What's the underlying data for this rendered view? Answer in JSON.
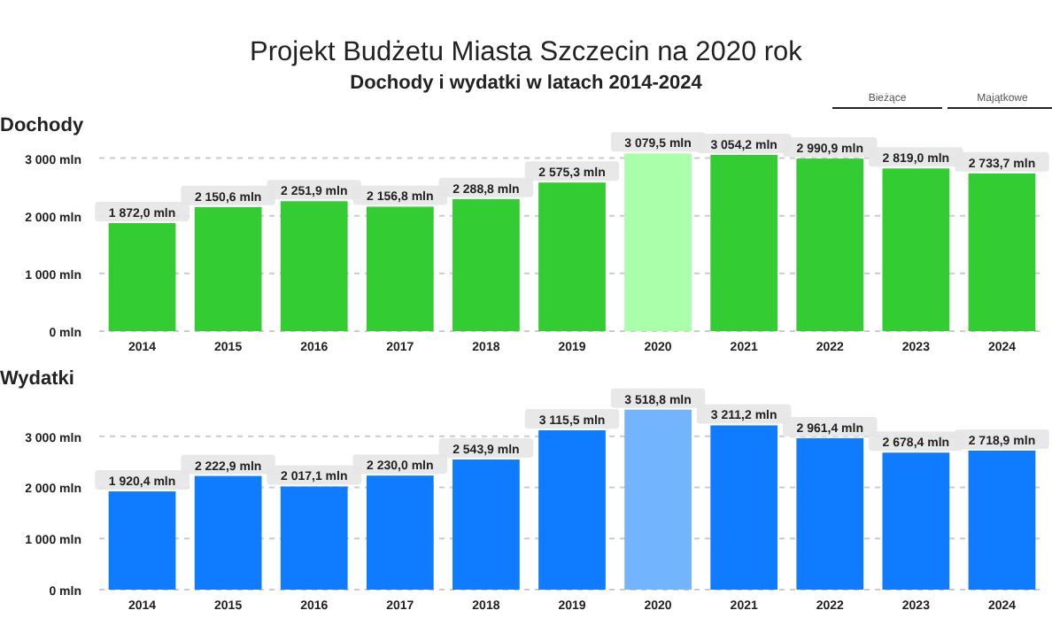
{
  "chart_data": [
    {
      "type": "bar",
      "title": "Projekt Budżetu Miasta Szczecin na 2020 rok",
      "subtitle": "Dochody i wydatki w latach 2014-2024",
      "annotations": [
        "Dochody",
        "Bieżące",
        "Majątkowe"
      ],
      "categories": [
        "2014",
        "2015",
        "2016",
        "2017",
        "2018",
        "2019",
        "2020",
        "2021",
        "2022",
        "2023",
        "2024"
      ],
      "values": [
        1872.0,
        2150.6,
        2251.9,
        2156.8,
        2288.8,
        2575.3,
        3079.5,
        3054.2,
        2990.9,
        2819.0,
        2733.7
      ],
      "colors": [
        "#33cc33",
        "#33cc33",
        "#33cc33",
        "#33cc33",
        "#33cc33",
        "#33cc33",
        "#aaffaa",
        "#33cc33",
        "#33cc33",
        "#33cc33",
        "#33cc33"
      ],
      "value_labels": [
        "1 872,0 mln",
        "2 150,6 mln",
        "2 251,9 mln",
        "2 156,8 mln",
        "2 288,8 mln",
        "2 575,3 mln",
        "3 079,5 mln",
        "3 054,2 mln",
        "2 990,9 mln",
        "2 819,0 mln",
        "2 733,7 mln"
      ],
      "ylim": [
        0,
        3100
      ],
      "yticks": [
        {
          "value": 0,
          "label": "0 mln"
        },
        {
          "value": 1000,
          "label": "1 000 mln"
        },
        {
          "value": 2000,
          "label": "2 000 mln"
        },
        {
          "value": 3000,
          "label": "3 000 mln"
        }
      ],
      "grid": "y"
    },
    {
      "type": "bar",
      "title": "Wydatki",
      "categories": [
        "2014",
        "2015",
        "2016",
        "2017",
        "2018",
        "2019",
        "2020",
        "2021",
        "2022",
        "2023",
        "2024"
      ],
      "values": [
        1920.4,
        2222.9,
        2017.1,
        2230.0,
        2543.9,
        3115.5,
        3518.8,
        3211.2,
        2961.4,
        2678.4,
        2718.9
      ],
      "colors": [
        "#0f7bff",
        "#0f7bff",
        "#0f7bff",
        "#0f7bff",
        "#0f7bff",
        "#0f7bff",
        "#73b4ff",
        "#0f7bff",
        "#0f7bff",
        "#0f7bff",
        "#0f7bff"
      ],
      "value_labels": [
        "1 920,4 mln",
        "2 222,9 mln",
        "2 017,1 mln",
        "2 230,0 mln",
        "2 543,9 mln",
        "3 115,5 mln",
        "3 518,8 mln",
        "3 211,2 mln",
        "2 961,4 mln",
        "2 678,4 mln",
        "2 718,9 mln"
      ],
      "ylim": [
        0,
        3600
      ],
      "yticks": [
        {
          "value": 0,
          "label": "0 mln"
        },
        {
          "value": 1000,
          "label": "1 000 mln"
        },
        {
          "value": 2000,
          "label": "2 000 mln"
        },
        {
          "value": 3000,
          "label": "3 000 mln"
        }
      ],
      "grid": "y"
    }
  ]
}
